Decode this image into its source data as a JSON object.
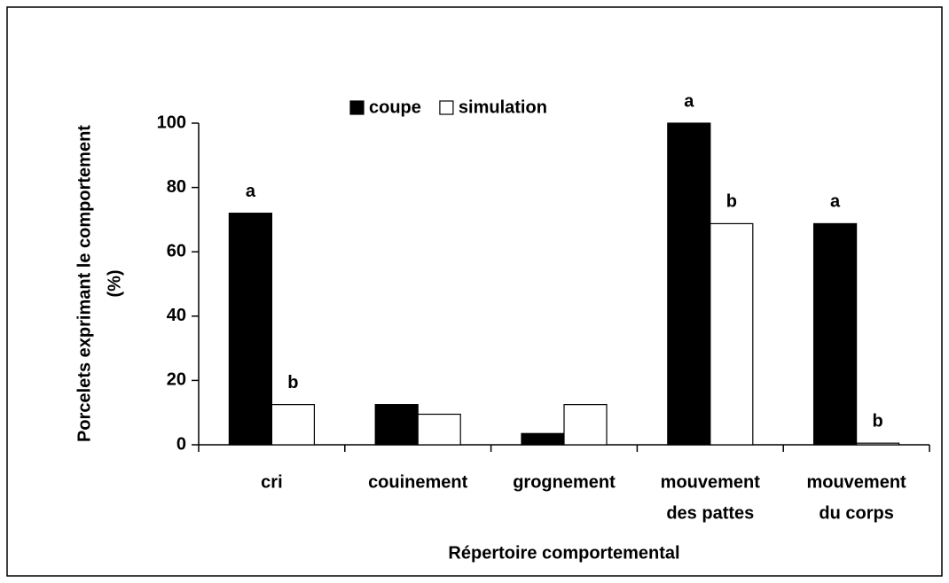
{
  "chart_data": {
    "type": "bar",
    "categories": [
      [
        "cri"
      ],
      [
        "couinement"
      ],
      [
        "grognement"
      ],
      [
        "mouvement",
        "des pattes"
      ],
      [
        "mouvement",
        "du corps"
      ]
    ],
    "series": [
      {
        "name": "coupe",
        "color": "#000000",
        "values": [
          72,
          12.5,
          3.5,
          100,
          68.75
        ],
        "letters": [
          "a",
          null,
          null,
          "a",
          "a"
        ]
      },
      {
        "name": "simulation",
        "color": "#ffffff",
        "values": [
          12.5,
          9.5,
          12.5,
          68.75,
          0.5
        ],
        "letters": [
          "b",
          null,
          null,
          "b",
          "b"
        ]
      }
    ],
    "ylabel": [
      "Porcelets exprimant le comportement",
      "(%)"
    ],
    "xlabel": "Répertoire comportemental",
    "ylim": [
      0,
      100
    ],
    "yticks": [
      0,
      20,
      40,
      60,
      80,
      100
    ],
    "legend": "top"
  }
}
